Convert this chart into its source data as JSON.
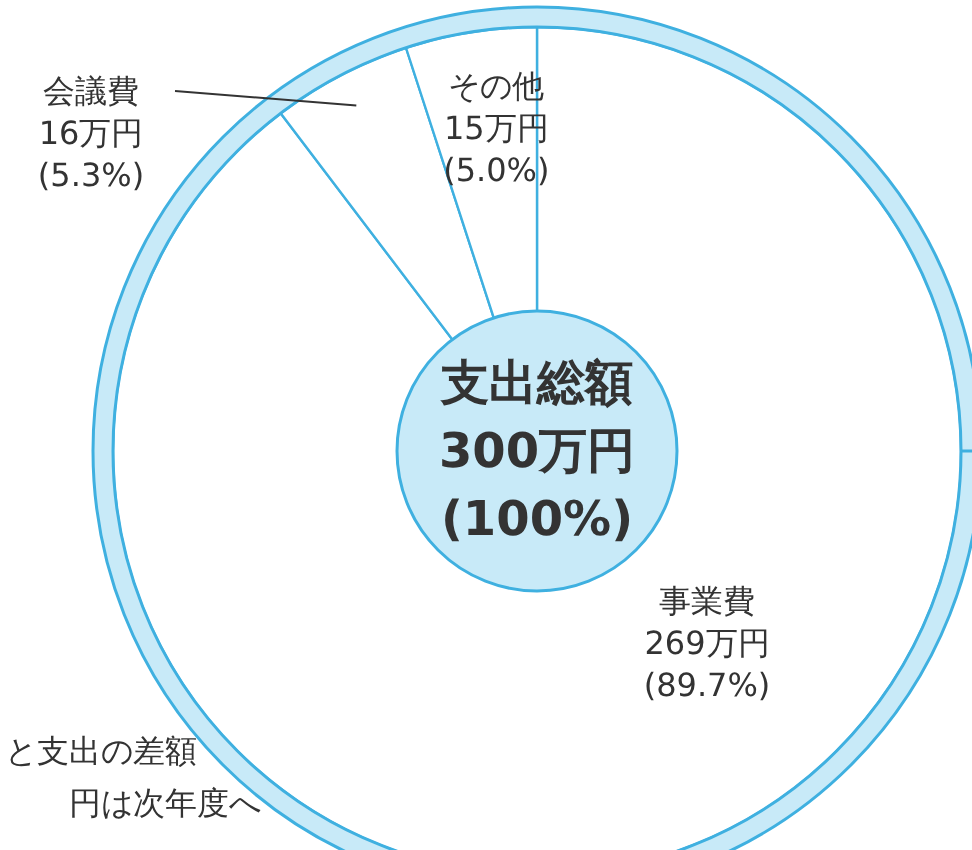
{
  "chart_data": {
    "type": "donut",
    "categories": [
      "事業費",
      "会議費",
      "その他"
    ],
    "values": [
      269,
      16,
      15
    ],
    "colors": [
      "#ffffff",
      "#ffffff",
      "#ffffff"
    ],
    "value_labels": [
      "269万円\n(89.7%)",
      "16万円\n(5.3%)",
      "15万円\n(5.0%)"
    ],
    "annotations": [
      "支出総額\n300万円\n(100%)",
      "と支出の差額",
      "円は次年度へ"
    ]
  }
}
